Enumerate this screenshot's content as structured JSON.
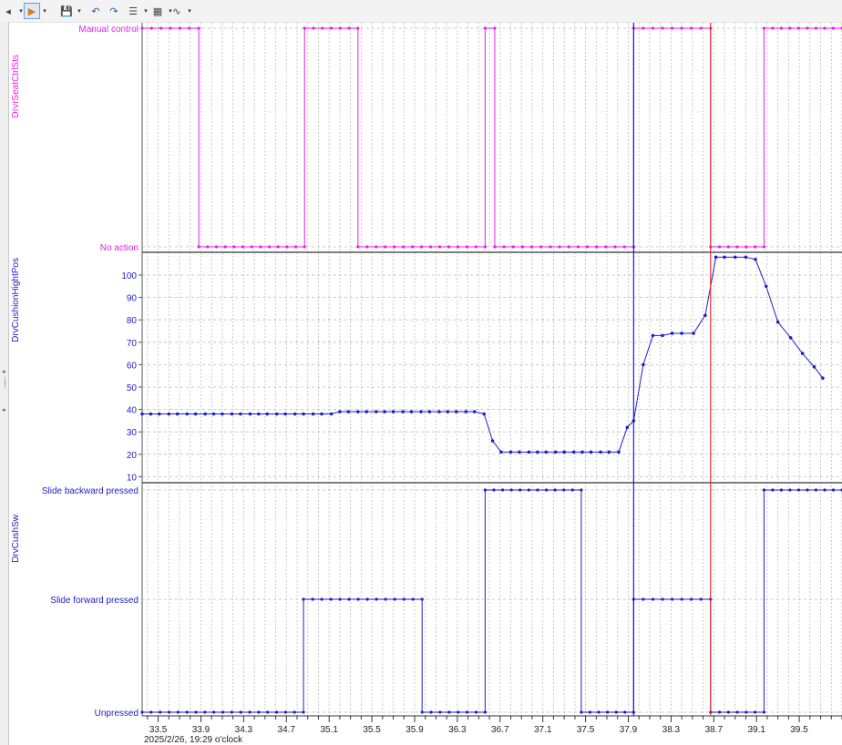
{
  "toolbar": {
    "items": [
      {
        "name": "navigate-back-icon",
        "glyph": "◂",
        "interactable": true
      },
      {
        "name": "play-cursor-icon",
        "glyph": "▶",
        "interactable": true,
        "active": true
      },
      {
        "name": "save-icon",
        "glyph": "💾",
        "interactable": true
      },
      {
        "name": "undo-icon",
        "glyph": "↶",
        "interactable": true
      },
      {
        "name": "redo-icon",
        "glyph": "↷",
        "interactable": true
      },
      {
        "name": "chart-settings-icon",
        "glyph": "☰",
        "interactable": true
      },
      {
        "name": "export-image-icon",
        "glyph": "▦",
        "interactable": true
      },
      {
        "name": "signal-wave-icon",
        "glyph": "∿",
        "interactable": true
      }
    ]
  },
  "footer": {
    "timestamp": "2025/2/26, 19:29 o'clock"
  },
  "colors": {
    "magenta": "#e81ee8",
    "blue": "#2020c8",
    "cursor_red": "#e03030",
    "cursor_blue": "#1a1ad8",
    "grid": "#bdbdbd"
  },
  "chart_data": [
    {
      "type": "line",
      "signal": "DrvrSeatCtrlSts",
      "ylabel": "DrvrSeatCtrlSts",
      "color": "#e81ee8",
      "step": true,
      "levels": [
        "No action",
        "Manual control"
      ],
      "xlim": [
        33.35,
        39.9
      ],
      "segments": [
        {
          "x0": 33.35,
          "x1": 33.88,
          "level": "Manual control"
        },
        {
          "x0": 33.88,
          "x1": 34.87,
          "level": "No action"
        },
        {
          "x0": 34.87,
          "x1": 35.37,
          "level": "Manual control"
        },
        {
          "x0": 35.37,
          "x1": 36.56,
          "level": "No action"
        },
        {
          "x0": 36.56,
          "x1": 36.65,
          "level": "Manual control"
        },
        {
          "x0": 36.65,
          "x1": 37.95,
          "level": "No action"
        },
        {
          "x0": 37.95,
          "x1": 38.67,
          "level": "Manual control"
        },
        {
          "x0": 38.67,
          "x1": 39.17,
          "level": "No action"
        },
        {
          "x0": 39.17,
          "x1": 39.9,
          "level": "Manual control"
        }
      ]
    },
    {
      "type": "line",
      "signal": "DrvCushionHightPos",
      "ylabel": "DrvCushionHightPos",
      "color": "#2020c8",
      "ylim": [
        7,
        108
      ],
      "yticks": [
        10,
        20,
        30,
        40,
        50,
        60,
        70,
        80,
        90,
        100
      ],
      "xlim": [
        33.35,
        39.9
      ],
      "points": [
        [
          33.35,
          38
        ],
        [
          33.43,
          38
        ],
        [
          33.51,
          38
        ],
        [
          33.6,
          38
        ],
        [
          33.68,
          38
        ],
        [
          33.77,
          38
        ],
        [
          33.85,
          38
        ],
        [
          33.94,
          38
        ],
        [
          34.02,
          38
        ],
        [
          34.1,
          38
        ],
        [
          34.19,
          38
        ],
        [
          34.27,
          38
        ],
        [
          34.36,
          38
        ],
        [
          34.44,
          38
        ],
        [
          34.52,
          38
        ],
        [
          34.61,
          38
        ],
        [
          34.69,
          38
        ],
        [
          34.78,
          38
        ],
        [
          34.86,
          38
        ],
        [
          34.95,
          38
        ],
        [
          35.03,
          38
        ],
        [
          35.12,
          38
        ],
        [
          35.2,
          39
        ],
        [
          35.28,
          39
        ],
        [
          35.37,
          39
        ],
        [
          35.45,
          39
        ],
        [
          35.54,
          39
        ],
        [
          35.62,
          39
        ],
        [
          35.7,
          39
        ],
        [
          35.79,
          39
        ],
        [
          35.87,
          39
        ],
        [
          35.96,
          39
        ],
        [
          36.04,
          39
        ],
        [
          36.13,
          39
        ],
        [
          36.21,
          39
        ],
        [
          36.29,
          39
        ],
        [
          36.38,
          39
        ],
        [
          36.46,
          39
        ],
        [
          36.55,
          38
        ],
        [
          36.63,
          26
        ],
        [
          36.71,
          21
        ],
        [
          36.8,
          21
        ],
        [
          36.88,
          21
        ],
        [
          36.97,
          21
        ],
        [
          37.05,
          21
        ],
        [
          37.13,
          21
        ],
        [
          37.22,
          21
        ],
        [
          37.3,
          21
        ],
        [
          37.39,
          21
        ],
        [
          37.47,
          21
        ],
        [
          37.55,
          21
        ],
        [
          37.64,
          21
        ],
        [
          37.72,
          21
        ],
        [
          37.81,
          21
        ],
        [
          37.89,
          32
        ],
        [
          37.95,
          35
        ],
        [
          38.04,
          60
        ],
        [
          38.13,
          73
        ],
        [
          38.22,
          73
        ],
        [
          38.31,
          74
        ],
        [
          38.4,
          74
        ],
        [
          38.51,
          74
        ],
        [
          38.62,
          82
        ],
        [
          38.72,
          108
        ],
        [
          38.8,
          108
        ],
        [
          38.9,
          108
        ],
        [
          39.0,
          108
        ],
        [
          39.09,
          107
        ],
        [
          39.19,
          95
        ],
        [
          39.3,
          79
        ],
        [
          39.42,
          72
        ],
        [
          39.53,
          65
        ],
        [
          39.64,
          59
        ],
        [
          39.72,
          54
        ]
      ]
    },
    {
      "type": "line",
      "signal": "DrvCushSw",
      "ylabel": "DrvCushSw",
      "color": "#2020c8",
      "step": true,
      "levels": [
        "Unpressed",
        "Slide forward pressed",
        "Slide backward pressed"
      ],
      "xlim": [
        33.35,
        39.9
      ],
      "segments": [
        {
          "x0": 33.35,
          "x1": 34.86,
          "level": "Unpressed"
        },
        {
          "x0": 34.86,
          "x1": 35.97,
          "level": "Slide forward pressed"
        },
        {
          "x0": 35.97,
          "x1": 36.56,
          "level": "Unpressed"
        },
        {
          "x0": 36.56,
          "x1": 37.46,
          "level": "Slide backward pressed"
        },
        {
          "x0": 37.46,
          "x1": 37.95,
          "level": "Unpressed"
        },
        {
          "x0": 37.95,
          "x1": 38.67,
          "level": "Slide forward pressed"
        },
        {
          "x0": 38.67,
          "x1": 39.17,
          "level": "Unpressed"
        },
        {
          "x0": 39.17,
          "x1": 39.9,
          "level": "Slide backward pressed"
        }
      ]
    }
  ],
  "x_axis": {
    "xlim": [
      33.35,
      39.9
    ],
    "major_ticks": [
      33.5,
      33.9,
      34.3,
      34.7,
      35.1,
      35.5,
      35.9,
      36.3,
      36.7,
      37.1,
      37.5,
      37.9,
      38.3,
      38.7,
      39.1,
      39.5
    ],
    "tick_labels": [
      "33.5",
      "33.9",
      "34.3",
      "34.7",
      "35.1",
      "35.5",
      "35.9",
      "36.3",
      "36.7",
      "37.1",
      "37.5",
      "37.9",
      "38.3",
      "38.7",
      "39.1",
      "39.5"
    ]
  },
  "cursors": [
    {
      "name": "measurement-cursor-blue",
      "x": 37.95,
      "color": "#1a1ad8"
    },
    {
      "name": "measurement-cursor-red",
      "x": 38.67,
      "color": "#e03030"
    }
  ]
}
